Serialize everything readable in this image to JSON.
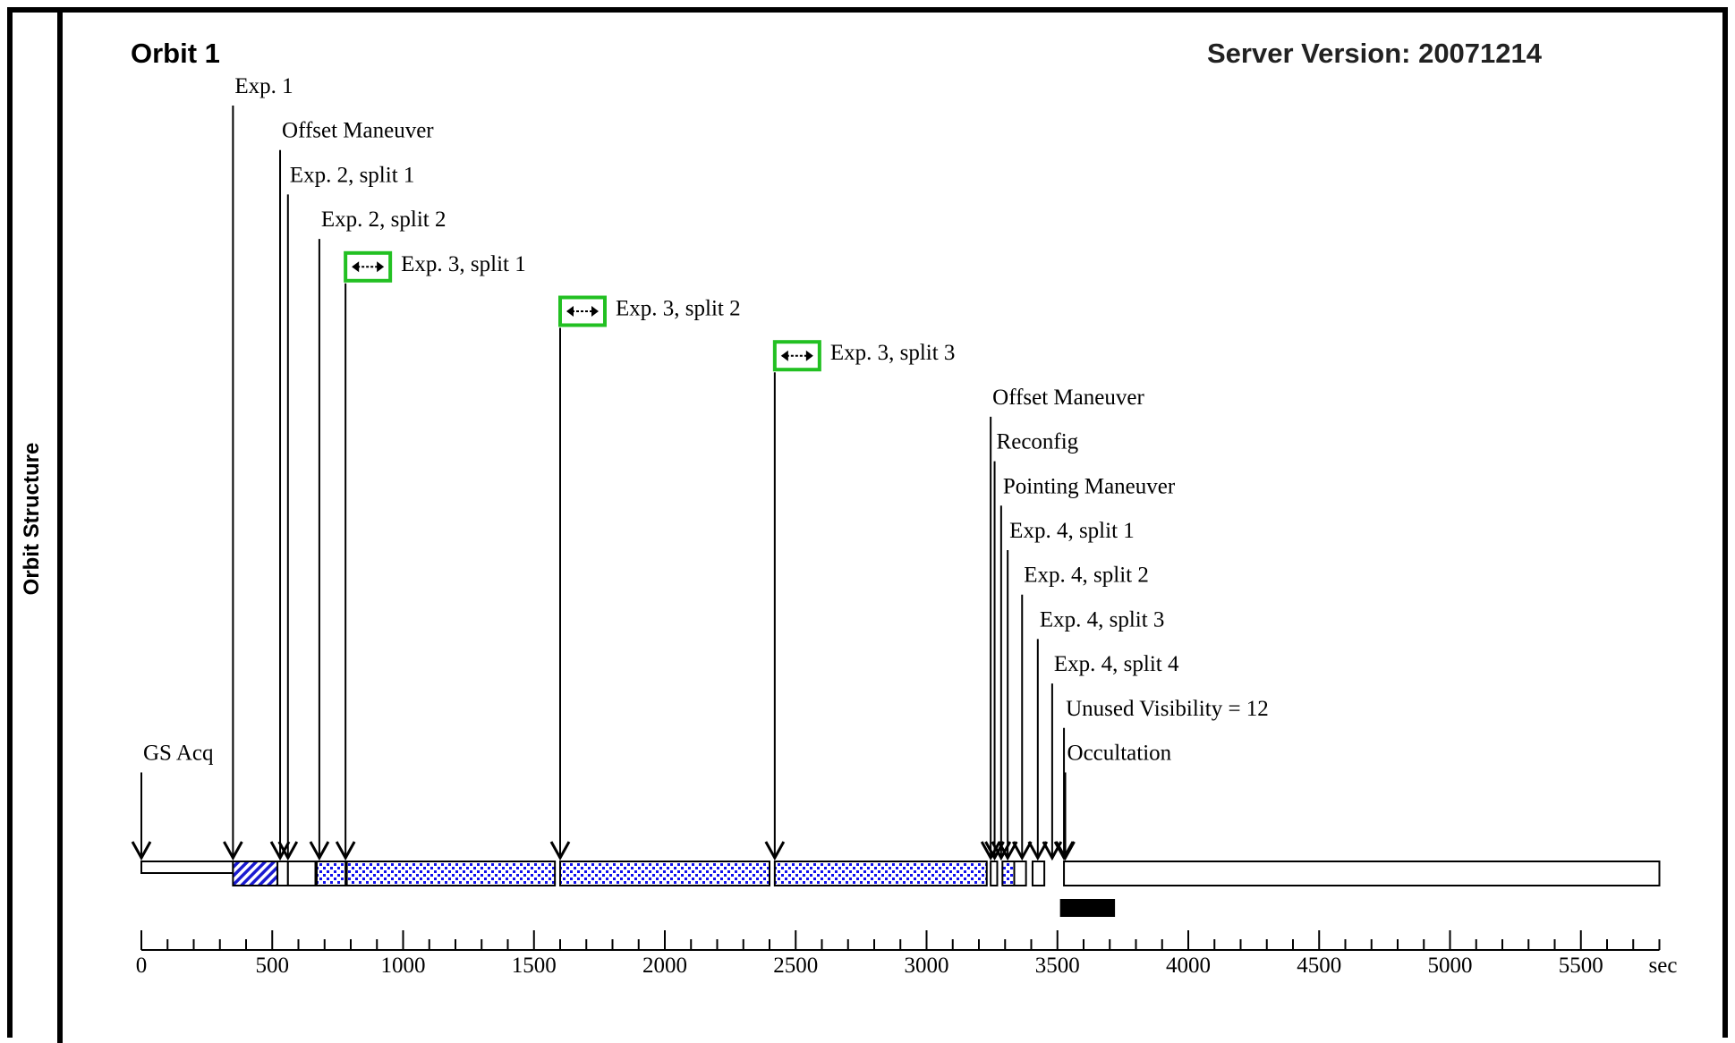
{
  "page": {
    "side_label": "Orbit Structure",
    "orbit_title": "Orbit 1",
    "server_version": "Server Version: 20071214"
  },
  "chart_data": {
    "type": "timeline",
    "axis": {
      "min": 0,
      "max": 5800,
      "major_step": 500,
      "minor_step": 100,
      "unit": "sec",
      "tick_labels": [
        "0",
        "500",
        "1000",
        "1500",
        "2000",
        "2500",
        "3000",
        "3500",
        "4000",
        "4500",
        "5000",
        "5500"
      ]
    },
    "events": [
      {
        "label": "GS Acq",
        "t": 0,
        "level": 15,
        "icon": false
      },
      {
        "label": "Exp. 1",
        "t": 350,
        "level": 0,
        "icon": false
      },
      {
        "label": "Offset Maneuver",
        "t": 530,
        "level": 1,
        "icon": false
      },
      {
        "label": "Exp. 2, split 1",
        "t": 560,
        "level": 2,
        "icon": false
      },
      {
        "label": "Exp. 2, split 2",
        "t": 680,
        "level": 3,
        "icon": false
      },
      {
        "label": "Exp. 3, split 1",
        "t": 780,
        "level": 4,
        "icon": true
      },
      {
        "label": "Exp. 3, split 2",
        "t": 1600,
        "level": 5,
        "icon": true
      },
      {
        "label": "Exp. 3, split 3",
        "t": 2420,
        "level": 6,
        "icon": true
      },
      {
        "label": "Offset Maneuver",
        "t": 3245,
        "level": 7,
        "icon": false
      },
      {
        "label": "Reconfig",
        "t": 3260,
        "level": 8,
        "icon": false
      },
      {
        "label": "Pointing Maneuver",
        "t": 3285,
        "level": 9,
        "icon": false
      },
      {
        "label": "Exp. 4, split 1",
        "t": 3310,
        "level": 10,
        "icon": false
      },
      {
        "label": "Exp. 4, split 2",
        "t": 3365,
        "level": 11,
        "icon": false
      },
      {
        "label": "Exp. 4, split 3",
        "t": 3425,
        "level": 12,
        "icon": false
      },
      {
        "label": "Exp. 4, split 4",
        "t": 3480,
        "level": 13,
        "icon": false
      },
      {
        "label": "Unused Visibility = 12",
        "t": 3525,
        "level": 14,
        "icon": false
      },
      {
        "label": "Occultation",
        "t": 3530,
        "level": 15,
        "icon": false
      }
    ],
    "segments": [
      {
        "start": 0,
        "end": 350,
        "pattern": "thin"
      },
      {
        "start": 350,
        "end": 520,
        "pattern": "hatch"
      },
      {
        "start": 520,
        "end": 560,
        "pattern": "empty"
      },
      {
        "start": 560,
        "end": 665,
        "pattern": "empty"
      },
      {
        "start": 670,
        "end": 780,
        "pattern": "dots"
      },
      {
        "start": 785,
        "end": 1580,
        "pattern": "dots"
      },
      {
        "start": 1600,
        "end": 2400,
        "pattern": "dots"
      },
      {
        "start": 2420,
        "end": 3230,
        "pattern": "dots"
      },
      {
        "start": 3245,
        "end": 3270,
        "pattern": "empty"
      },
      {
        "start": 3290,
        "end": 3335,
        "pattern": "dots"
      },
      {
        "start": 3335,
        "end": 3380,
        "pattern": "empty"
      },
      {
        "start": 3405,
        "end": 3450,
        "pattern": "empty"
      },
      {
        "start": 3525,
        "end": 5800,
        "pattern": "empty"
      }
    ],
    "occultation_block": {
      "start": 3510,
      "end": 3720
    }
  },
  "colors": {
    "dot_pattern": "#1010ee",
    "hatch_pattern": "#1a1ad0",
    "icon_border": "#22c022",
    "marker": "#000000"
  }
}
